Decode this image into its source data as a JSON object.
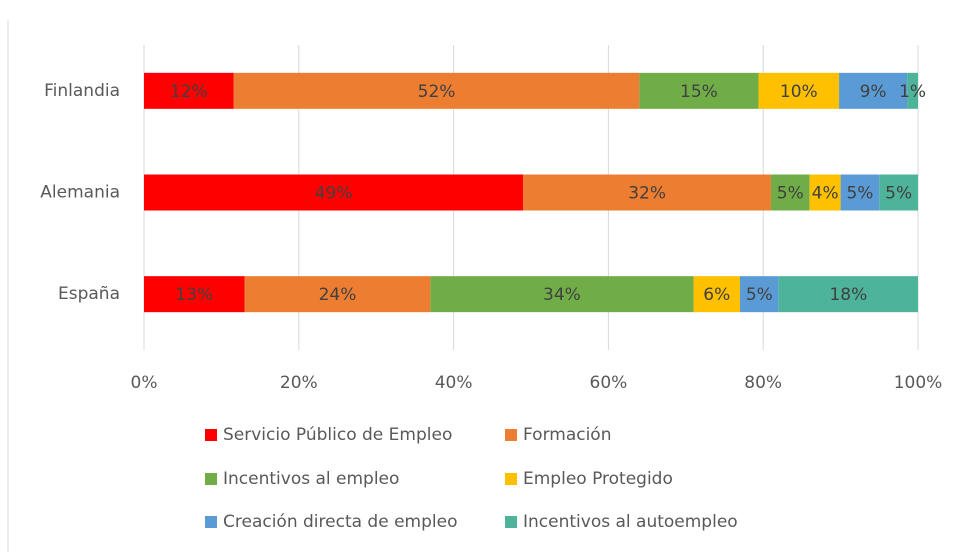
{
  "chart_data": {
    "type": "bar",
    "orientation": "horizontal",
    "stacked": true,
    "categories": [
      "Finlandia",
      "Alemania",
      "España"
    ],
    "series": [
      {
        "name": "Servicio Público de Empleo",
        "color": "#ff0000",
        "values": [
          11.6,
          49,
          13
        ],
        "value_labels": [
          "12%",
          "49%",
          "13%"
        ]
      },
      {
        "name": "Formación",
        "color": "#ed7d31",
        "values": [
          52.4,
          32,
          24
        ],
        "value_labels": [
          "52%",
          "32%",
          "24%"
        ]
      },
      {
        "name": "Incentivos al empleo",
        "color": "#70ad47",
        "values": [
          15.4,
          5,
          34
        ],
        "value_labels": [
          "15%",
          "5%",
          "34%"
        ]
      },
      {
        "name": "Empleo Protegido",
        "color": "#ffc000",
        "values": [
          10.4,
          4,
          6
        ],
        "value_labels": [
          "10%",
          "4%",
          "6%"
        ]
      },
      {
        "name": "Creación directa de empleo",
        "color": "#5b9bd5",
        "values": [
          8.8,
          5,
          5
        ],
        "value_labels": [
          "9%",
          "5%",
          "5%"
        ]
      },
      {
        "name": "Incentivos al autoempleo",
        "color": "#4db39a",
        "values": [
          1.4,
          5,
          18
        ],
        "value_labels": [
          "1%",
          "5%",
          "18%"
        ]
      }
    ],
    "xlim": [
      0,
      100
    ],
    "xticks": [
      {
        "value": 0,
        "label": "0%"
      },
      {
        "value": 20,
        "label": "20%"
      },
      {
        "value": 40,
        "label": "40%"
      },
      {
        "value": 60,
        "label": "60%"
      },
      {
        "value": 80,
        "label": "80%"
      },
      {
        "value": 100,
        "label": "100%"
      }
    ],
    "grid": true,
    "legend": "bottom"
  }
}
